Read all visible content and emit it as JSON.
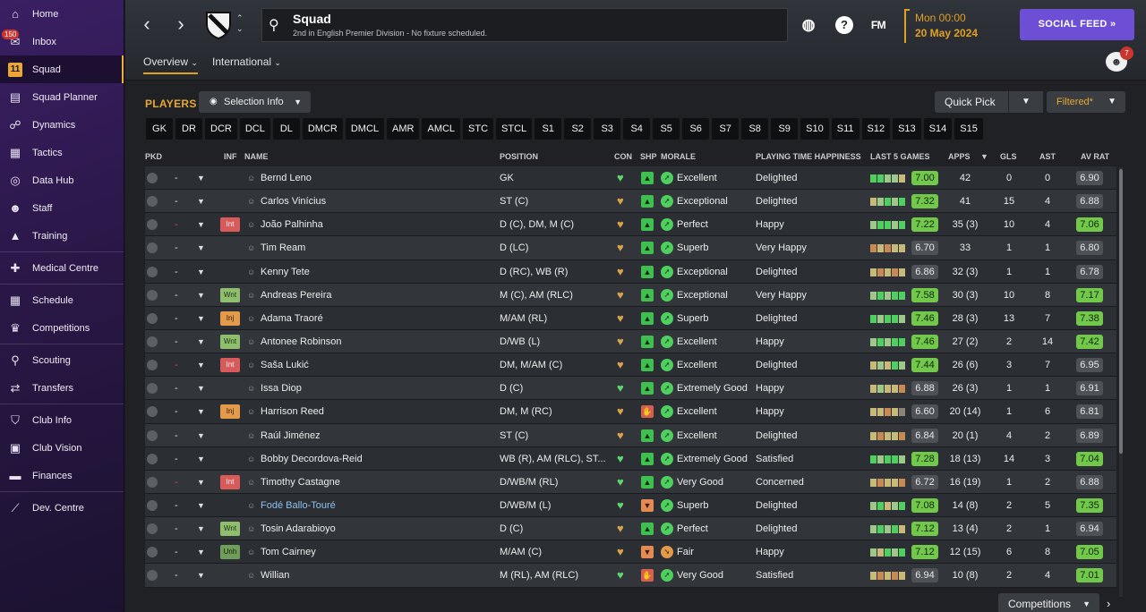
{
  "sidebar": {
    "inbox_badge": "150",
    "items": [
      {
        "label": "Home",
        "icon": "home-icon",
        "glyph": "⌂"
      },
      {
        "label": "Inbox",
        "icon": "inbox-icon",
        "glyph": "✉"
      },
      {
        "label": "Squad",
        "icon": "squad-shirt-icon",
        "glyph": "11",
        "active": true
      },
      {
        "label": "Squad Planner",
        "icon": "planner-icon",
        "glyph": "▤"
      },
      {
        "label": "Dynamics",
        "icon": "dynamics-icon",
        "glyph": "☍"
      },
      {
        "label": "Tactics",
        "icon": "tactics-board-icon",
        "glyph": "▦"
      },
      {
        "label": "Data Hub",
        "icon": "data-hub-icon",
        "glyph": "◎"
      },
      {
        "label": "Staff",
        "icon": "staff-icon",
        "glyph": "☻"
      },
      {
        "label": "Training",
        "icon": "training-cone-icon",
        "glyph": "▲"
      },
      {
        "label": "Medical Centre",
        "icon": "medical-kit-icon",
        "glyph": "✚"
      },
      {
        "label": "Schedule",
        "icon": "calendar-icon",
        "glyph": "▦"
      },
      {
        "label": "Competitions",
        "icon": "trophy-icon",
        "glyph": "♛"
      },
      {
        "label": "Scouting",
        "icon": "scouting-search-icon",
        "glyph": "⚲"
      },
      {
        "label": "Transfers",
        "icon": "transfers-icon",
        "glyph": "⇄"
      },
      {
        "label": "Club Info",
        "icon": "club-shield-icon",
        "glyph": "⛉"
      },
      {
        "label": "Club Vision",
        "icon": "briefcase-icon",
        "glyph": "▣"
      },
      {
        "label": "Finances",
        "icon": "finances-icon",
        "glyph": "▬"
      },
      {
        "label": "Dev. Centre",
        "icon": "dev-centre-icon",
        "glyph": "⟋"
      }
    ]
  },
  "header": {
    "title": "Squad",
    "subtitle": "2nd in English Premier Division - No fixture scheduled.",
    "fm_label": "FM",
    "date_time": "Mon 00:00",
    "date": "20 May 2024",
    "social_feed": "SOCIAL FEED  »",
    "tabs": [
      "Overview",
      "International"
    ],
    "people_badge": "7"
  },
  "toolbar": {
    "players_label": "PLAYERS",
    "selection_info": "Selection Info",
    "quick_pick": "Quick Pick",
    "filtered": "Filtered*",
    "positions": [
      "GK",
      "DR",
      "DCR",
      "DCL",
      "DL",
      "DMCR",
      "DMCL",
      "AMR",
      "AMCL",
      "STC",
      "STCL",
      "S1",
      "S2",
      "S3",
      "S4",
      "S5",
      "S6",
      "S7",
      "S8",
      "S9",
      "S10",
      "S11",
      "S12",
      "S13",
      "S14",
      "S15"
    ]
  },
  "table": {
    "headers": {
      "pkd": "PKD",
      "inf": "INF",
      "name": "NAME",
      "position": "POSITION",
      "con": "CON",
      "shp": "SHP",
      "morale": "MORALE",
      "pth": "PLAYING TIME HAPPINESS",
      "last5": "LAST 5 GAMES",
      "apps": "APPS",
      "gls": "GLS",
      "ast": "AST",
      "avrat": "AV RAT"
    },
    "rows": [
      {
        "dash": "-",
        "dash_red": false,
        "inf": "",
        "name": "Bernd Leno",
        "position": "GK",
        "con": "green",
        "shp": "g",
        "morale": "Excellent",
        "morale_type": "g",
        "pth": "Delighted",
        "form": [
          "g",
          "g",
          "lg",
          "lg",
          "y"
        ],
        "last5": "7.00",
        "last5_hi": true,
        "apps": "42",
        "gls": "0",
        "ast": "0",
        "avrat": "6.90",
        "avrat_hi": false
      },
      {
        "dash": "-",
        "dash_red": false,
        "inf": "",
        "name": "Carlos Vinícius",
        "position": "ST (C)",
        "con": "gold",
        "shp": "g",
        "morale": "Exceptional",
        "morale_type": "g",
        "pth": "Delighted",
        "form": [
          "y",
          "lg",
          "g",
          "lg",
          "g"
        ],
        "last5": "7.32",
        "last5_hi": true,
        "apps": "41",
        "gls": "15",
        "ast": "4",
        "avrat": "6.88",
        "avrat_hi": false
      },
      {
        "dash": "-",
        "dash_red": true,
        "inf": "Int",
        "name": "João Palhinha",
        "position": "D (C), DM, M (C)",
        "con": "gold",
        "shp": "g",
        "morale": "Perfect",
        "morale_type": "g",
        "pth": "Happy",
        "form": [
          "lg",
          "g",
          "g",
          "lg",
          "g"
        ],
        "last5": "7.22",
        "last5_hi": true,
        "apps": "35 (3)",
        "gls": "10",
        "ast": "4",
        "avrat": "7.06",
        "avrat_hi": true
      },
      {
        "dash": "-",
        "dash_red": false,
        "inf": "",
        "name": "Tim Ream",
        "position": "D (LC)",
        "con": "gold",
        "shp": "g",
        "morale": "Superb",
        "morale_type": "g",
        "pth": "Very Happy",
        "form": [
          "o",
          "y",
          "o",
          "y",
          "y"
        ],
        "last5": "6.70",
        "last5_hi": false,
        "apps": "33",
        "gls": "1",
        "ast": "1",
        "avrat": "6.80",
        "avrat_hi": false
      },
      {
        "dash": "-",
        "dash_red": false,
        "inf": "",
        "name": "Kenny Tete",
        "position": "D (RC), WB (R)",
        "con": "gold",
        "shp": "g",
        "morale": "Exceptional",
        "morale_type": "g",
        "pth": "Delighted",
        "form": [
          "y",
          "o",
          "y",
          "o",
          "y"
        ],
        "last5": "6.86",
        "last5_hi": false,
        "apps": "32 (3)",
        "gls": "1",
        "ast": "1",
        "avrat": "6.78",
        "avrat_hi": false
      },
      {
        "dash": "-",
        "dash_red": false,
        "inf": "Wnt",
        "name": "Andreas Pereira",
        "position": "M (C), AM (RLC)",
        "con": "gold",
        "shp": "g",
        "morale": "Exceptional",
        "morale_type": "g",
        "pth": "Very Happy",
        "form": [
          "lg",
          "g",
          "lg",
          "g",
          "g"
        ],
        "last5": "7.58",
        "last5_hi": true,
        "apps": "30 (3)",
        "gls": "10",
        "ast": "8",
        "avrat": "7.17",
        "avrat_hi": true
      },
      {
        "dash": "-",
        "dash_red": false,
        "inf": "Inj",
        "name": "Adama Traoré",
        "position": "M/AM (RL)",
        "con": "gold",
        "shp": "g",
        "morale": "Superb",
        "morale_type": "g",
        "pth": "Delighted",
        "form": [
          "g",
          "lg",
          "g",
          "g",
          "lg"
        ],
        "last5": "7.46",
        "last5_hi": true,
        "apps": "28 (3)",
        "gls": "13",
        "ast": "7",
        "avrat": "7.38",
        "avrat_hi": true
      },
      {
        "dash": "-",
        "dash_red": false,
        "inf": "Wnt",
        "name": "Antonee Robinson",
        "position": "D/WB (L)",
        "con": "gold",
        "shp": "g",
        "morale": "Excellent",
        "morale_type": "g",
        "pth": "Happy",
        "form": [
          "lg",
          "g",
          "lg",
          "g",
          "g"
        ],
        "last5": "7.46",
        "last5_hi": true,
        "apps": "27 (2)",
        "gls": "2",
        "ast": "14",
        "avrat": "7.42",
        "avrat_hi": true
      },
      {
        "dash": "-",
        "dash_red": true,
        "inf": "Int",
        "name": "Saša Lukić",
        "position": "DM, M/AM (C)",
        "con": "gold",
        "shp": "g",
        "morale": "Excellent",
        "morale_type": "g",
        "pth": "Delighted",
        "form": [
          "y",
          "lg",
          "y",
          "g",
          "lg"
        ],
        "last5": "7.44",
        "last5_hi": true,
        "apps": "26 (6)",
        "gls": "3",
        "ast": "7",
        "avrat": "6.95",
        "avrat_hi": false
      },
      {
        "dash": "-",
        "dash_red": false,
        "inf": "",
        "name": "Issa Diop",
        "position": "D (C)",
        "con": "green",
        "shp": "g",
        "morale": "Extremely Good",
        "morale_type": "g",
        "pth": "Happy",
        "form": [
          "y",
          "lg",
          "y",
          "y",
          "o"
        ],
        "last5": "6.88",
        "last5_hi": false,
        "apps": "26 (3)",
        "gls": "1",
        "ast": "1",
        "avrat": "6.91",
        "avrat_hi": false
      },
      {
        "dash": "-",
        "dash_red": false,
        "inf": "Inj",
        "name": "Harrison Reed",
        "position": "DM, M (RC)",
        "con": "gold",
        "shp": "r",
        "morale": "Excellent",
        "morale_type": "g",
        "pth": "Happy",
        "form": [
          "y",
          "y",
          "o",
          "y",
          "n"
        ],
        "last5": "6.60",
        "last5_hi": false,
        "apps": "20 (14)",
        "gls": "1",
        "ast": "6",
        "avrat": "6.81",
        "avrat_hi": false
      },
      {
        "dash": "-",
        "dash_red": false,
        "inf": "",
        "name": "Raúl Jiménez",
        "position": "ST (C)",
        "con": "gold",
        "shp": "g",
        "morale": "Excellent",
        "morale_type": "g",
        "pth": "Delighted",
        "form": [
          "y",
          "o",
          "y",
          "y",
          "o"
        ],
        "last5": "6.84",
        "last5_hi": false,
        "apps": "20 (1)",
        "gls": "4",
        "ast": "2",
        "avrat": "6.89",
        "avrat_hi": false
      },
      {
        "dash": "-",
        "dash_red": false,
        "inf": "",
        "name": "Bobby Decordova-Reid",
        "position": "WB (R), AM (RLC), ST...",
        "con": "green",
        "shp": "g",
        "morale": "Extremely Good",
        "morale_type": "g",
        "pth": "Satisfied",
        "form": [
          "g",
          "lg",
          "g",
          "g",
          "lg"
        ],
        "last5": "7.28",
        "last5_hi": true,
        "apps": "18 (13)",
        "gls": "14",
        "ast": "3",
        "avrat": "7.04",
        "avrat_hi": true
      },
      {
        "dash": "-",
        "dash_red": true,
        "inf": "Int",
        "name": "Timothy Castagne",
        "position": "D/WB/M (RL)",
        "con": "green",
        "shp": "g",
        "morale": "Very Good",
        "morale_type": "g",
        "pth": "Concerned",
        "form": [
          "y",
          "o",
          "y",
          "y",
          "o"
        ],
        "last5": "6.72",
        "last5_hi": false,
        "apps": "16 (19)",
        "gls": "1",
        "ast": "2",
        "avrat": "6.88",
        "avrat_hi": false
      },
      {
        "dash": "-",
        "dash_red": false,
        "inf": "",
        "name": "Fodé Ballo-Touré",
        "loan": true,
        "position": "D/WB/M (L)",
        "con": "green",
        "shp": "o",
        "morale": "Superb",
        "morale_type": "g",
        "pth": "Delighted",
        "form": [
          "lg",
          "g",
          "y",
          "lg",
          "g"
        ],
        "last5": "7.08",
        "last5_hi": true,
        "apps": "14 (8)",
        "gls": "2",
        "ast": "5",
        "avrat": "7.35",
        "avrat_hi": true
      },
      {
        "dash": "-",
        "dash_red": false,
        "inf": "Wnt",
        "name": "Tosin Adarabioyo",
        "position": "D (C)",
        "con": "gold",
        "shp": "g",
        "morale": "Perfect",
        "morale_type": "g",
        "pth": "Delighted",
        "form": [
          "lg",
          "g",
          "lg",
          "g",
          "y"
        ],
        "last5": "7.12",
        "last5_hi": true,
        "apps": "13 (4)",
        "gls": "2",
        "ast": "1",
        "avrat": "6.94",
        "avrat_hi": false
      },
      {
        "dash": "-",
        "dash_red": false,
        "inf": "Unh",
        "name": "Tom Cairney",
        "position": "M/AM (C)",
        "con": "gold",
        "shp": "o",
        "morale": "Fair",
        "morale_type": "o",
        "pth": "Happy",
        "form": [
          "lg",
          "y",
          "g",
          "lg",
          "g"
        ],
        "last5": "7.12",
        "last5_hi": true,
        "apps": "12 (15)",
        "gls": "6",
        "ast": "8",
        "avrat": "7.05",
        "avrat_hi": true
      },
      {
        "dash": "-",
        "dash_red": false,
        "inf": "",
        "name": "Willian",
        "position": "M (RL), AM (RLC)",
        "con": "green",
        "shp": "r",
        "morale": "Very Good",
        "morale_type": "g",
        "pth": "Satisfied",
        "form": [
          "y",
          "o",
          "y",
          "o",
          "y"
        ],
        "last5": "6.94",
        "last5_hi": false,
        "apps": "10 (8)",
        "gls": "2",
        "ast": "4",
        "avrat": "7.01",
        "avrat_hi": true
      }
    ]
  },
  "footer": {
    "competitions": "Competitions"
  },
  "colors": {
    "accent": "#e8a832",
    "social": "#6d4fd6",
    "rating_good": "#72c84a",
    "sidebar": "#2a1747"
  }
}
